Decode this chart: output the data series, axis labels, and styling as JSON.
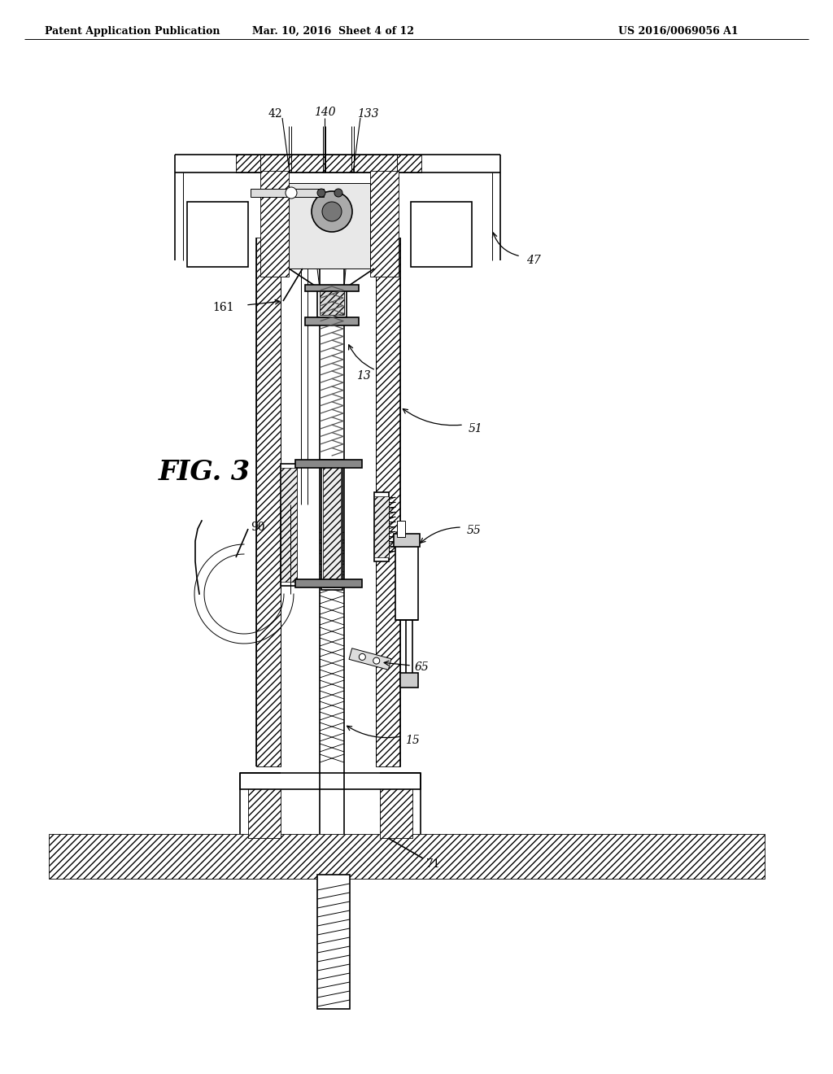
{
  "title_left": "Patent Application Publication",
  "title_mid": "Mar. 10, 2016  Sheet 4 of 12",
  "title_right": "US 2016/0069056 A1",
  "fig_label": "FIG. 3",
  "background_color": "#ffffff",
  "line_color": "#000000",
  "gray_light": "#cccccc",
  "gray_med": "#999999",
  "gray_dark": "#555555"
}
